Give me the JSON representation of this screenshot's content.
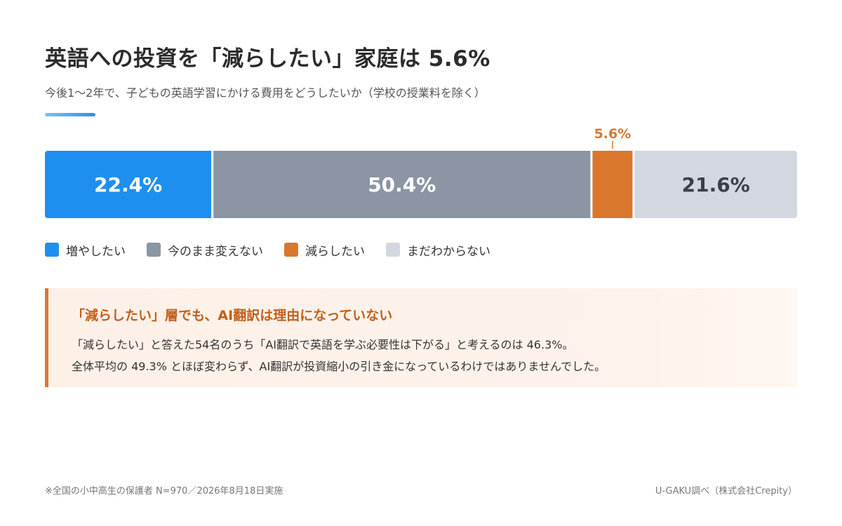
{
  "header": {
    "title": "英語への投資を「減らしたい」家庭は 5.6%",
    "subtitle": "今後1〜2年で、子どもの英語学習にかける費用をどうしたいか（学校の授業料を除く）"
  },
  "chart_data": {
    "type": "bar",
    "orientation": "horizontal-stacked-100",
    "categories": [
      "増やしたい",
      "今のまま変えない",
      "減らしたい",
      "まだわからない"
    ],
    "values": [
      22.4,
      50.4,
      5.6,
      21.6
    ],
    "labels": [
      "22.4%",
      "50.4%",
      "5.6%",
      "21.6%"
    ],
    "colors": [
      "#1e8ff0",
      "#8c95a4",
      "#d9772f",
      "#d3d7df"
    ],
    "label_colors": [
      "#ffffff",
      "#ffffff",
      "#d9772f",
      "#3a3f48"
    ],
    "label_outside": [
      false,
      false,
      true,
      false
    ],
    "legend": "bottom-left",
    "grid": false
  },
  "legend_items": [
    {
      "label": "増やしたい",
      "color": "#1e8ff0"
    },
    {
      "label": "今のまま変えない",
      "color": "#8c95a4"
    },
    {
      "label": "減らしたい",
      "color": "#d9772f"
    },
    {
      "label": "まだわからない",
      "color": "#d3d7df"
    }
  ],
  "callout": {
    "heading": "「減らしたい」層でも、AI翻訳は理由になっていない",
    "line1": "「減らしたい」と答えた54名のうち「AI翻訳で英語を学ぶ必要性は下がる」と考えるのは 46.3%。",
    "line2": "全体平均の 49.3% とほぼ変わらず、AI翻訳が投資縮小の引き金になっているわけではありませんでした。",
    "accent": "#d9772f"
  },
  "footer": {
    "note": "※全国の小中高生の保護者 N=970／2026年8月18日実施",
    "credit": "U-GAKU調べ（株式会社Crepity）"
  }
}
